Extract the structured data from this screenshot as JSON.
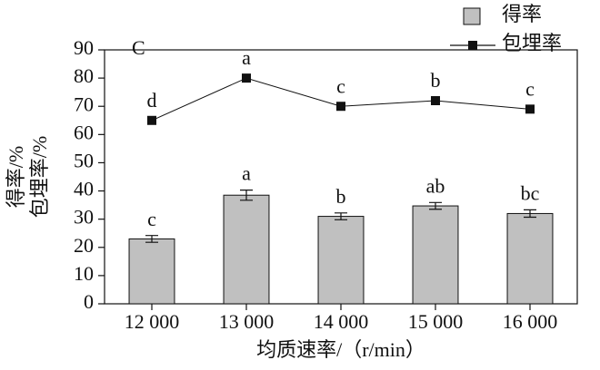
{
  "chart_data": {
    "type": "bar",
    "panel_label": "C",
    "x_label": "均质速率/（r/min）",
    "y_label_lines": [
      "得率/%",
      "包埋率/%"
    ],
    "categories": [
      "12 000",
      "13 000",
      "14 000",
      "15 000",
      "16 000"
    ],
    "series": [
      {
        "name": "得率",
        "type": "bar",
        "color": "#c0c0c0",
        "values": [
          23,
          38.5,
          31,
          34.7,
          32
        ],
        "errors": [
          1.2,
          1.8,
          1.2,
          1.2,
          1.3
        ],
        "letters": [
          "c",
          "a",
          "b",
          "ab",
          "bc"
        ]
      },
      {
        "name": "包埋率",
        "type": "line",
        "color": "#111111",
        "values": [
          65,
          80,
          70,
          72,
          69
        ],
        "letters": [
          "d",
          "a",
          "c",
          "b",
          "c"
        ]
      }
    ],
    "ylim": [
      0,
      90
    ],
    "yticks": [
      0,
      10,
      20,
      30,
      40,
      50,
      60,
      70,
      80,
      90
    ]
  }
}
